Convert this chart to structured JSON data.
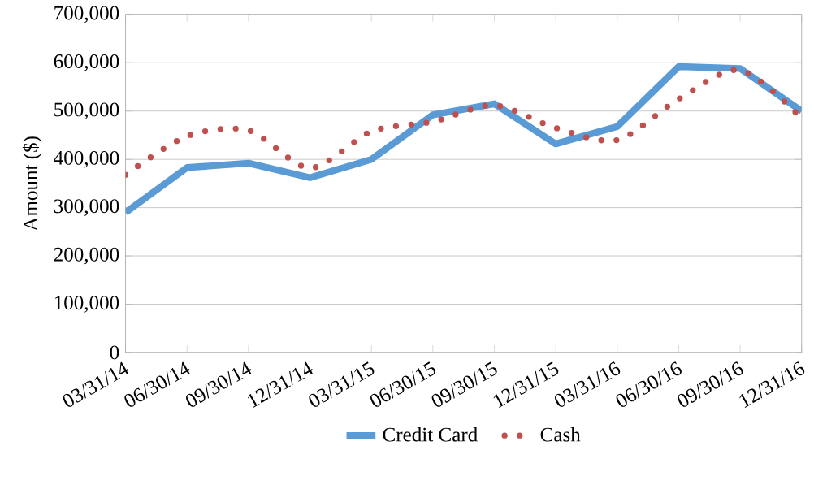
{
  "chart_data": {
    "type": "line",
    "ylabel": "Amount ($)",
    "categories": [
      "03/31/14",
      "06/30/14",
      "09/30/14",
      "12/31/14",
      "03/31/15",
      "06/30/15",
      "09/30/15",
      "12/31/15",
      "03/31/16",
      "06/30/16",
      "09/30/16",
      "12/31/16"
    ],
    "series": [
      {
        "name": "Credit Card",
        "color": "#5b9bd5",
        "line_style": "solid",
        "values": [
          290000,
          383000,
          392000,
          362000,
          400000,
          492000,
          515000,
          432000,
          468000,
          592000,
          588000,
          500000
        ]
      },
      {
        "name": "Cash",
        "color": "#c0504d",
        "line_style": "dotted",
        "values": [
          368000,
          448000,
          460000,
          382000,
          458000,
          478000,
          512000,
          465000,
          440000,
          525000,
          585000,
          485000
        ]
      }
    ],
    "ylim": [
      0,
      700000
    ],
    "yticks": [
      0,
      {
        "value": 100000,
        "label": "100,000"
      },
      {
        "value": 200000,
        "label": "200,000"
      },
      {
        "value": 300000,
        "label": "300,000"
      },
      {
        "value": 400000,
        "label": "400,000"
      },
      {
        "value": 500000,
        "label": "500,000"
      },
      {
        "value": 600000,
        "label": "600,000"
      },
      {
        "value": 700000,
        "label": "700,000"
      }
    ],
    "grid": "y",
    "legend": "bottom",
    "marker": "none"
  }
}
